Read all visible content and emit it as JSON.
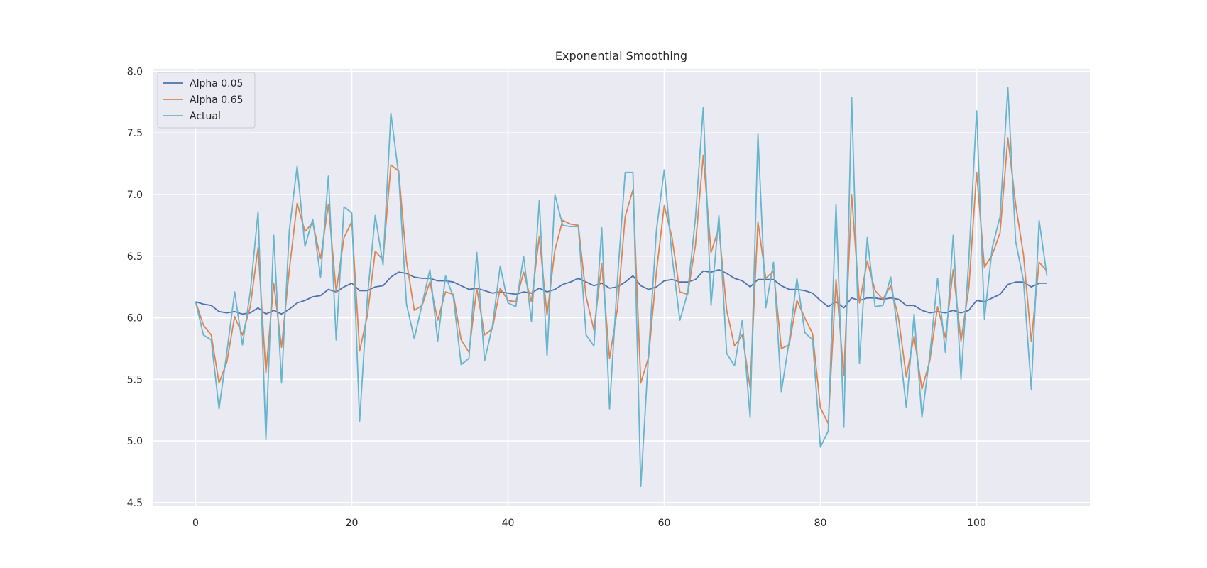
{
  "chart_data": {
    "type": "line",
    "title": "Exponential Smoothing",
    "xlabel": "",
    "ylabel": "",
    "xlim": [
      -5.5,
      114.5
    ],
    "ylim": [
      4.47,
      8.02
    ],
    "x_ticks": [
      0,
      20,
      40,
      60,
      80,
      100
    ],
    "y_ticks": [
      4.5,
      5.0,
      5.5,
      6.0,
      6.5,
      7.0,
      7.5,
      8.0
    ],
    "grid": true,
    "background": "#eaeaf2",
    "grid_color": "#ffffff",
    "legend": "top-left",
    "x": [
      0,
      1,
      2,
      3,
      4,
      5,
      6,
      7,
      8,
      9,
      10,
      11,
      12,
      13,
      14,
      15,
      16,
      17,
      18,
      19,
      20,
      21,
      22,
      23,
      24,
      25,
      26,
      27,
      28,
      29,
      30,
      31,
      32,
      33,
      34,
      35,
      36,
      37,
      38,
      39,
      40,
      41,
      42,
      43,
      44,
      45,
      46,
      47,
      48,
      49,
      50,
      51,
      52,
      53,
      54,
      55,
      56,
      57,
      58,
      59,
      60,
      61,
      62,
      63,
      64,
      65,
      66,
      67,
      68,
      69,
      70,
      71,
      72,
      73,
      74,
      75,
      76,
      77,
      78,
      79,
      80,
      81,
      82,
      83,
      84,
      85,
      86,
      87,
      88,
      89,
      90,
      91,
      92,
      93,
      94,
      95,
      96,
      97,
      98,
      99,
      100,
      101,
      102,
      103,
      104,
      105,
      106,
      107,
      108,
      109
    ],
    "series": [
      {
        "name": "Alpha 0.05",
        "color": "#4c72b0",
        "values": [
          6.13,
          6.11,
          6.1,
          6.05,
          6.04,
          6.05,
          6.03,
          6.04,
          6.08,
          6.03,
          6.06,
          6.03,
          6.07,
          6.12,
          6.14,
          6.17,
          6.18,
          6.23,
          6.21,
          6.25,
          6.28,
          6.22,
          6.22,
          6.25,
          6.26,
          6.33,
          6.37,
          6.36,
          6.33,
          6.32,
          6.32,
          6.3,
          6.3,
          6.29,
          6.26,
          6.23,
          6.24,
          6.22,
          6.2,
          6.21,
          6.2,
          6.19,
          6.21,
          6.2,
          6.24,
          6.21,
          6.23,
          6.27,
          6.29,
          6.32,
          6.29,
          6.26,
          6.28,
          6.24,
          6.25,
          6.29,
          6.34,
          6.26,
          6.23,
          6.25,
          6.3,
          6.31,
          6.29,
          6.29,
          6.31,
          6.38,
          6.37,
          6.39,
          6.36,
          6.32,
          6.3,
          6.25,
          6.31,
          6.31,
          6.31,
          6.26,
          6.23,
          6.23,
          6.22,
          6.2,
          6.14,
          6.09,
          6.13,
          6.08,
          6.16,
          6.14,
          6.16,
          6.16,
          6.15,
          6.16,
          6.15,
          6.1,
          6.1,
          6.06,
          6.04,
          6.05,
          6.04,
          6.06,
          6.04,
          6.06,
          6.14,
          6.13,
          6.16,
          6.19,
          6.27,
          6.29,
          6.29,
          6.25,
          6.28,
          6.28
        ]
      },
      {
        "name": "Alpha 0.65",
        "color": "#dd8452",
        "values": [
          6.13,
          5.94,
          5.86,
          5.47,
          5.64,
          6.01,
          5.86,
          6.09,
          6.57,
          5.55,
          6.28,
          5.76,
          6.39,
          6.93,
          6.7,
          6.77,
          6.48,
          6.92,
          6.21,
          6.65,
          6.78,
          5.73,
          6.02,
          6.54,
          6.47,
          7.24,
          7.19,
          6.46,
          6.06,
          6.1,
          6.29,
          5.98,
          6.21,
          6.19,
          5.82,
          5.72,
          6.24,
          5.86,
          5.91,
          6.24,
          6.14,
          6.13,
          6.37,
          6.13,
          6.66,
          6.02,
          6.55,
          6.79,
          6.76,
          6.75,
          6.17,
          5.9,
          6.44,
          5.67,
          6.07,
          6.82,
          7.04,
          5.47,
          5.68,
          6.37,
          6.91,
          6.65,
          6.21,
          6.19,
          6.59,
          7.32,
          6.53,
          6.73,
          6.06,
          5.77,
          5.86,
          5.43,
          6.78,
          6.32,
          6.38,
          5.75,
          5.78,
          6.14,
          6.0,
          5.87,
          5.27,
          5.14,
          6.31,
          5.53,
          7.0,
          6.12,
          6.46,
          6.22,
          6.15,
          6.26,
          6.0,
          5.52,
          5.85,
          5.42,
          5.65,
          6.09,
          5.84,
          6.39,
          5.81,
          6.24,
          7.18,
          6.41,
          6.51,
          6.69,
          7.46,
          6.92,
          6.51,
          5.81,
          6.45,
          6.38
        ]
      },
      {
        "name": "Actual",
        "color": "#64b5cd",
        "values": [
          6.13,
          5.86,
          5.82,
          5.26,
          5.72,
          6.21,
          5.78,
          6.21,
          6.86,
          5.01,
          6.67,
          5.47,
          6.71,
          7.23,
          6.58,
          6.8,
          6.33,
          7.15,
          5.82,
          6.9,
          6.85,
          5.16,
          6.17,
          6.83,
          6.43,
          7.66,
          7.16,
          6.11,
          5.83,
          6.11,
          6.39,
          5.81,
          6.34,
          6.17,
          5.62,
          5.67,
          6.53,
          5.65,
          5.93,
          6.42,
          6.12,
          6.09,
          6.5,
          5.97,
          6.95,
          5.69,
          7.0,
          6.75,
          6.74,
          6.74,
          5.86,
          5.77,
          6.73,
          5.26,
          6.3,
          7.18,
          7.18,
          4.63,
          5.71,
          6.71,
          7.2,
          6.5,
          5.98,
          6.2,
          6.81,
          7.71,
          6.1,
          6.83,
          5.71,
          5.61,
          5.98,
          5.19,
          7.49,
          6.08,
          6.45,
          5.4,
          5.81,
          6.32,
          5.88,
          5.82,
          4.95,
          5.08,
          6.92,
          5.11,
          7.79,
          5.63,
          6.65,
          6.09,
          6.1,
          6.33,
          5.84,
          5.27,
          6.03,
          5.19,
          5.69,
          6.32,
          5.72,
          6.67,
          5.5,
          6.47,
          7.68,
          5.99,
          6.57,
          6.82,
          7.87,
          6.62,
          6.3,
          5.42,
          6.79,
          6.34
        ]
      }
    ]
  }
}
